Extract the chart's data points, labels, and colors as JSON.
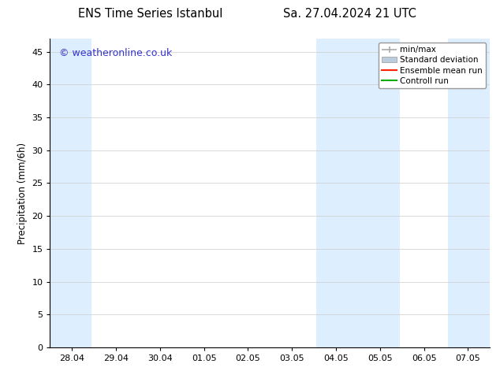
{
  "title_left": "ENS Time Series Istanbul",
  "title_right": "Sa. 27.04.2024 21 UTC",
  "ylabel": "Precipitation (mm/6h)",
  "ylim": [
    0,
    47
  ],
  "yticks": [
    0,
    5,
    10,
    15,
    20,
    25,
    30,
    35,
    40,
    45
  ],
  "xtick_labels": [
    "28.04",
    "29.04",
    "30.04",
    "01.05",
    "02.05",
    "03.05",
    "04.05",
    "05.05",
    "06.05",
    "07.05"
  ],
  "n_xticks": 10,
  "xmin": 0,
  "xmax": 9,
  "bg_color": "#ffffff",
  "plot_bg_color": "#ffffff",
  "shaded_band_color": "#ddeeff",
  "watermark": "© weatheronline.co.uk",
  "watermark_color": "#3333cc",
  "legend_entries": [
    "min/max",
    "Standard deviation",
    "Ensemble mean run",
    "Controll run"
  ],
  "legend_line_colors": [
    "#aaaaaa",
    "#bbccdd",
    "#ff2200",
    "#00aa00"
  ],
  "shaded_regions": [
    {
      "xstart": -0.5,
      "xend": 0.45
    },
    {
      "xstart": 5.55,
      "xend": 7.45
    },
    {
      "xstart": 8.55,
      "xend": 9.5
    }
  ],
  "font_family": "DejaVu Sans",
  "title_fontsize": 10.5,
  "tick_fontsize": 8,
  "legend_fontsize": 7.5,
  "ylabel_fontsize": 8.5,
  "watermark_fontsize": 9
}
